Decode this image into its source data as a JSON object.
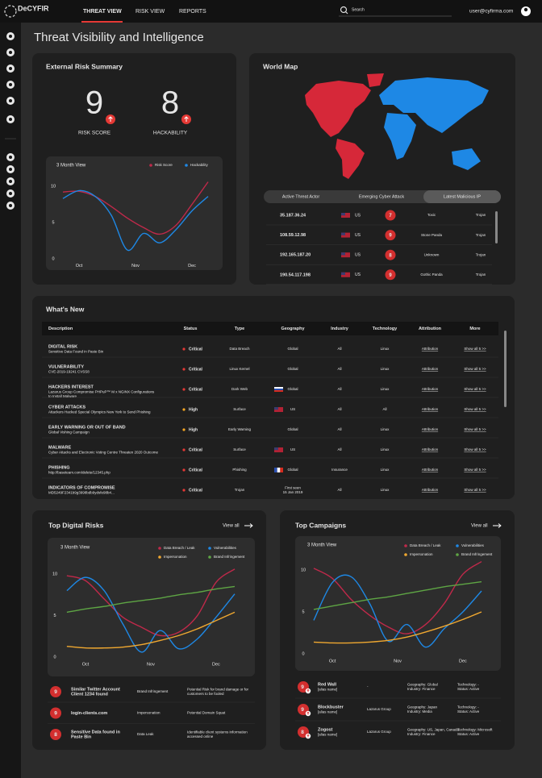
{
  "header": {
    "logo": "DeCYFIR",
    "nav": [
      "THREAT VIEW",
      "RISK VIEW",
      "REPORTS"
    ],
    "search_placeholder": "Search",
    "user": "user@cyfirma.com"
  },
  "page_title": "Threat Visibility and Intelligence",
  "risk_summary": {
    "title": "External Risk Summary",
    "scores": [
      {
        "value": 9,
        "label": "RISK SCORE"
      },
      {
        "value": 8,
        "label": "HACKABILITY"
      }
    ],
    "chart_data": {
      "type": "line",
      "title": "3 Month View",
      "x": [
        0,
        1,
        2,
        3,
        4,
        5,
        6,
        7,
        8,
        9
      ],
      "xlim": [
        0,
        9
      ],
      "xticks": [
        {
          "value": 1,
          "label": "Oct"
        },
        {
          "value": 4.5,
          "label": "Nov"
        },
        {
          "value": 8,
          "label": "Dec"
        }
      ],
      "ylim": [
        -0.5,
        11
      ],
      "yticks": [
        0,
        5,
        10
      ],
      "series": [
        {
          "name": "Risk Score",
          "color": "#c0294a",
          "values": [
            9.2,
            9.3,
            8.6,
            7.2,
            5.6,
            4.3,
            3.4,
            4.6,
            7.5,
            10.6
          ]
        },
        {
          "name": "Hackability",
          "color": "#1e88e5",
          "values": [
            8.3,
            9.4,
            8.6,
            6.0,
            1.2,
            3.5,
            2.2,
            4.0,
            6.6,
            8.6
          ]
        }
      ]
    }
  },
  "world_map": {
    "title": "World Map",
    "tabs": [
      "Active Threat Actor",
      "Emerging Cyber Attack",
      "Latest Malicious IP"
    ],
    "rows": [
      {
        "ip": "35.187.36.24",
        "country": "US",
        "score": 7,
        "actor": "Toxic",
        "type": "Trojan"
      },
      {
        "ip": "108.59.12.98",
        "country": "US",
        "score": 9,
        "actor": "Stone Panda",
        "type": "Trojan"
      },
      {
        "ip": "192.165.187.20",
        "country": "US",
        "score": 8,
        "actor": "Unknown",
        "type": "Trojan"
      },
      {
        "ip": "190.54.117.198",
        "country": "US",
        "score": 9,
        "actor": "Gothic Panda",
        "type": "Trojan"
      }
    ]
  },
  "whats_new": {
    "title": "What's New",
    "columns": [
      "Description",
      "Status",
      "Type",
      "Geography",
      "Industry",
      "Technology",
      "Attribution",
      "More"
    ],
    "rows": [
      {
        "category": "DIGITAL RISK",
        "description": [
          "Sensitive Data Found in Paste Bin"
        ],
        "status": "Critical",
        "status_color": "#e53935",
        "type": "Data Breach",
        "geography": [
          "Global"
        ],
        "industry": "All",
        "technology": "Linux",
        "attribution": "Attribution",
        "more": "Show all 5 >>"
      },
      {
        "category": "VULNERABILITY",
        "description": [
          "CVE-2019-19241 CVSS8"
        ],
        "status": "Critical",
        "status_color": "#e53935",
        "type": "Linux Kernel",
        "geography": [
          "Global"
        ],
        "industry": "All",
        "technology": "Linux",
        "attribution": "Attribution",
        "more": "Show all 5 >>"
      },
      {
        "category": "HACKERS INTEREST",
        "description": [
          "Lazarus Group Compromise PHPuP™ M x NGINX Configurations",
          "to Install Malware"
        ],
        "status": "Critical",
        "status_color": "#e53935",
        "type": "Dark Web",
        "geography": [
          "Global"
        ],
        "industry": "All",
        "technology": "Linux",
        "attribution": "Attribution",
        "more": "Show all 5 >>"
      },
      {
        "category": "CYBER ATTACKS",
        "description": [
          "Attackers Hacked Special Olympics New York to Send Phishing"
        ],
        "status": "High",
        "status_color": "#f5a623",
        "type": "Surface",
        "geography": [
          "US"
        ],
        "industry": "All",
        "technology": "All",
        "attribution": "Attribution",
        "more": "Show all 5 >>"
      },
      {
        "category": "EARLY WARNING OR OUT OF BAND",
        "description": [
          "Global Vishing Campaign"
        ],
        "status": "High",
        "status_color": "#f5a623",
        "type": "Early Warning",
        "geography": [
          "Global"
        ],
        "industry": "All",
        "technology": "Linux",
        "attribution": "Attribution",
        "more": "Show all 5 >>"
      },
      {
        "category": "MALWARE",
        "description": [
          "Cyber Attacks and Electronic Voting Centre Threaten 2020 Outcome"
        ],
        "status": "Critical",
        "status_color": "#e53935",
        "type": "Surface",
        "geography": [
          "US"
        ],
        "industry": "All",
        "technology": "Linux",
        "attribution": "Attribution",
        "more": "Show all 5 >>"
      },
      {
        "category": "PHISHING",
        "description": [
          "http://baseteam.com/delete/12345.php"
        ],
        "status": "Critical",
        "status_color": "#e53935",
        "type": "Phishing",
        "geography": [
          "Global"
        ],
        "industry": "Insurance",
        "technology": "Linux",
        "attribution": "Attribution",
        "more": "Show all 5 >>"
      },
      {
        "category": "INDICATORS OF COMPROMISE",
        "description": [
          "MD5249F2341b9g3998bdb9ydsfe98b4..."
        ],
        "status": "Critical",
        "status_color": "#e53935",
        "type": "Trojan",
        "geography": [
          "First seen",
          "15 Jan 2019"
        ],
        "industry": "All",
        "technology": "Linux",
        "attribution": "Attribution",
        "more": "Show all 5 >>"
      }
    ]
  },
  "top_digital_risks": {
    "title": "Top Digital Risks",
    "view_all": "View all",
    "chart_data": {
      "type": "line",
      "title": "3 Month View",
      "x": [
        0,
        1,
        2,
        3,
        4,
        5,
        6,
        7,
        8,
        9
      ],
      "xlim": [
        0,
        9
      ],
      "xticks": [
        {
          "value": 1,
          "label": "Oct"
        },
        {
          "value": 4.5,
          "label": "Nov"
        },
        {
          "value": 8,
          "label": "Dec"
        }
      ],
      "ylim": [
        -0.5,
        11
      ],
      "yticks": [
        0,
        5,
        10
      ],
      "series": [
        {
          "name": "Data Breach / Leak",
          "color": "#c0294a",
          "values": [
            9.8,
            9.2,
            7.0,
            4.8,
            3.6,
            2.6,
            3.0,
            5.0,
            9.0,
            10.6
          ]
        },
        {
          "name": "Vulnerabilities",
          "color": "#1e88e5",
          "values": [
            8.0,
            9.6,
            8.0,
            4.0,
            0.6,
            3.2,
            1.0,
            2.2,
            4.8,
            7.6
          ]
        },
        {
          "name": "Impersonation",
          "color": "#f0a830",
          "values": [
            1.3,
            1.1,
            1.1,
            1.2,
            1.5,
            2.0,
            2.6,
            3.4,
            4.4,
            5.4
          ]
        },
        {
          "name": "Brand Infringement",
          "color": "#5ea544",
          "values": [
            5.4,
            5.8,
            6.1,
            6.5,
            6.8,
            7.1,
            7.5,
            7.8,
            8.2,
            8.5
          ]
        }
      ]
    },
    "items": [
      {
        "score": 9,
        "title": [
          "Similar Twitter Account",
          "Client 1234 found"
        ],
        "type": "Brand Infringement",
        "description": [
          "Potential Risk for brand damage or for",
          "customers to be fooled"
        ]
      },
      {
        "score": 9,
        "title": [
          "login-clients.com"
        ],
        "type": "Impersonation",
        "description": [
          "Potential Domain Squat"
        ]
      },
      {
        "score": 8,
        "title": [
          "Sensitive Data found in",
          "Paste Bin"
        ],
        "type": "Data Leak",
        "description": [
          "Identifiable client systems information",
          "accessed online"
        ]
      }
    ]
  },
  "top_campaigns": {
    "title": "Top Campaigns",
    "view_all": "View all",
    "chart_data": {
      "type": "line",
      "title": "3 Month View",
      "x": [
        0,
        1,
        2,
        3,
        4,
        5,
        6,
        7,
        8,
        9
      ],
      "xlim": [
        0,
        9
      ],
      "xticks": [
        {
          "value": 1,
          "label": "Oct"
        },
        {
          "value": 4.5,
          "label": "Nov"
        },
        {
          "value": 8,
          "label": "Dec"
        }
      ],
      "ylim": [
        -0.5,
        11
      ],
      "yticks": [
        0,
        5,
        10
      ],
      "series": [
        {
          "name": "Data Breach / Leak",
          "color": "#c0294a",
          "values": [
            10.2,
            9.0,
            6.5,
            4.6,
            3.2,
            2.4,
            3.5,
            6.0,
            9.5,
            11.0
          ]
        },
        {
          "name": "Vulnerabilities",
          "color": "#1e88e5",
          "values": [
            4.0,
            8.5,
            9.2,
            6.0,
            1.5,
            3.5,
            0.8,
            3.0,
            5.0,
            7.5
          ]
        },
        {
          "name": "Impersonation",
          "color": "#f0a830",
          "values": [
            1.4,
            1.3,
            1.3,
            1.4,
            1.6,
            2.0,
            2.6,
            3.3,
            4.1,
            5.0
          ]
        },
        {
          "name": "Brand Infringement",
          "color": "#5ea544",
          "values": [
            5.3,
            5.7,
            6.1,
            6.5,
            6.8,
            7.2,
            7.6,
            8.0,
            8.3,
            8.6
          ]
        }
      ]
    },
    "items": [
      {
        "score": 9,
        "name": "Red Wall",
        "alias": "[alias name]",
        "group": "-",
        "geo": [
          "Geography: Global",
          "Industry: Finance"
        ],
        "tech": [
          "Technology: -",
          "Status: Active"
        ]
      },
      {
        "score": 9,
        "name": "Blockbuster",
        "alias": "[alias name]",
        "group": "Lazarus Group",
        "geo": [
          "Geography: Japan",
          "Industry: Media"
        ],
        "tech": [
          "Technology: -",
          "Status: Active"
        ]
      },
      {
        "score": 8,
        "name": "Zogost",
        "alias": "[alias name]",
        "group": "Lazarus Group",
        "geo": [
          "Geography: US, Japan, Canada",
          "Industry: Finance"
        ],
        "tech": [
          "Technology: Microsoft",
          "Status: Active"
        ]
      }
    ]
  }
}
